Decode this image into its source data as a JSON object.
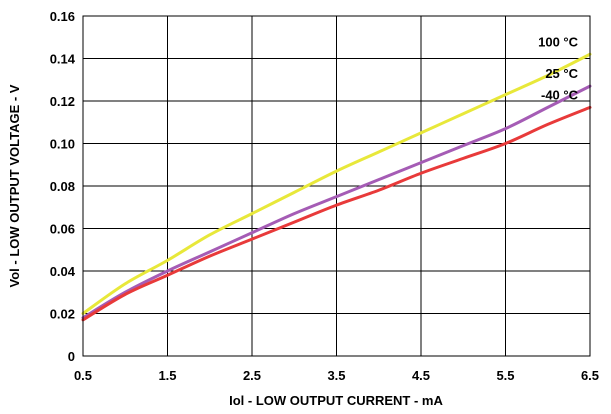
{
  "chart_data": {
    "type": "line",
    "title": "",
    "xlabel": "Iol - LOW OUTPUT CURRENT - mA",
    "ylabel": "Vol - LOW OUTPUT VOLTAGE - V",
    "xlim": [
      0.5,
      6.5
    ],
    "ylim": [
      0,
      0.16
    ],
    "x_ticks": [
      "0.5",
      "1.5",
      "2.5",
      "3.5",
      "4.5",
      "5.5",
      "6.5"
    ],
    "y_ticks": [
      "0",
      "0.02",
      "0.04",
      "0.06",
      "0.08",
      "0.10",
      "0.12",
      "0.14",
      "0.16"
    ],
    "grid": true,
    "x": [
      0.5,
      1.0,
      1.5,
      2.0,
      2.5,
      3.0,
      3.5,
      4.0,
      4.5,
      5.0,
      5.5,
      6.0,
      6.5
    ],
    "series": [
      {
        "name": "100 °C",
        "color": "#e8e83a",
        "values": [
          0.02,
          0.034,
          0.045,
          0.057,
          0.067,
          0.077,
          0.087,
          0.096,
          0.105,
          0.114,
          0.123,
          0.132,
          0.142
        ]
      },
      {
        "name": "25 °C",
        "color": "#a55cb5",
        "values": [
          0.018,
          0.03,
          0.04,
          0.049,
          0.058,
          0.067,
          0.075,
          0.083,
          0.091,
          0.099,
          0.107,
          0.117,
          0.127
        ]
      },
      {
        "name": "-40 °C",
        "color": "#e83a3a",
        "values": [
          0.017,
          0.029,
          0.038,
          0.047,
          0.055,
          0.063,
          0.071,
          0.078,
          0.086,
          0.093,
          0.1,
          0.109,
          0.117
        ]
      }
    ]
  }
}
